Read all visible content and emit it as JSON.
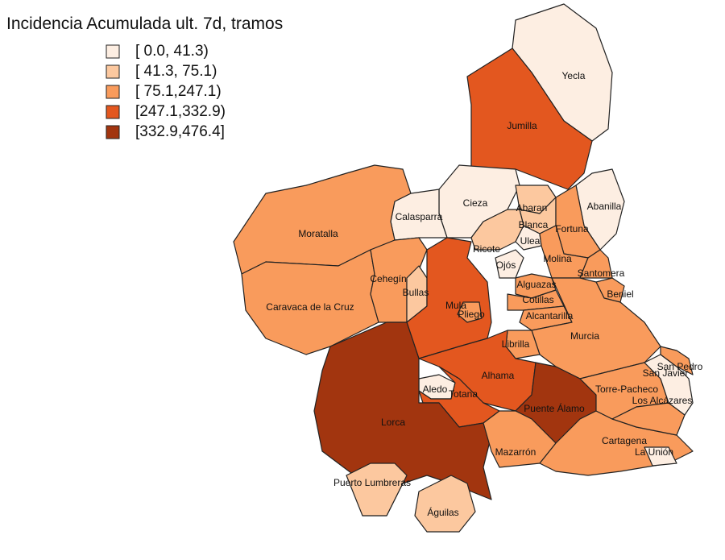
{
  "title": "Incidencia Acumulada ult. 7d, tramos",
  "legend": [
    {
      "label": "[  0.0, 41.3)",
      "color": "#fdeee2"
    },
    {
      "label": "[ 41.3, 75.1)",
      "color": "#fcc89f"
    },
    {
      "label": "[ 75.1,247.1)",
      "color": "#f99b5c"
    },
    {
      "label": "[247.1,332.9)",
      "color": "#e3571f"
    },
    {
      "label": "[332.9,476.4]",
      "color": "#a2350f"
    }
  ],
  "regions": [
    {
      "name": "Yecla",
      "color": "#fdeee2"
    },
    {
      "name": "Jumilla",
      "color": "#e3571f"
    },
    {
      "name": "Abanilla",
      "color": "#fdeee2"
    },
    {
      "name": "Cieza",
      "color": "#fdeee2"
    },
    {
      "name": "Calasparra",
      "color": "#fdeee2"
    },
    {
      "name": "Moratalla",
      "color": "#f99b5c"
    },
    {
      "name": "Caravaca de la Cruz",
      "color": "#f99b5c"
    },
    {
      "name": "Cehegín",
      "color": "#f99b5c"
    },
    {
      "name": "Bullas",
      "color": "#fcc89f"
    },
    {
      "name": "Mula",
      "color": "#e3571f"
    },
    {
      "name": "Pliego",
      "color": "#f99b5c"
    },
    {
      "name": "Abaran",
      "color": "#fcc89f"
    },
    {
      "name": "Blanca",
      "color": "#fcc89f"
    },
    {
      "name": "Ricote",
      "color": "#fcc89f"
    },
    {
      "name": "Fortuna",
      "color": "#f99b5c"
    },
    {
      "name": "Ulea",
      "color": "#fdeee2"
    },
    {
      "name": "Ojós",
      "color": "#fdeee2"
    },
    {
      "name": "Molina",
      "color": "#f99b5c"
    },
    {
      "name": "Santomera",
      "color": "#f99b5c"
    },
    {
      "name": "Beniel",
      "color": "#f99b5c"
    },
    {
      "name": "Alguazas",
      "color": "#f99b5c"
    },
    {
      "name": "Cotillas",
      "color": "#f99b5c"
    },
    {
      "name": "Alcantarilla",
      "color": "#f99b5c"
    },
    {
      "name": "Murcia",
      "color": "#f99b5c"
    },
    {
      "name": "Librilla",
      "color": "#f99b5c"
    },
    {
      "name": "Alhama",
      "color": "#e3571f"
    },
    {
      "name": "Aledo",
      "color": "#fdeee2"
    },
    {
      "name": "Totana",
      "color": "#e3571f"
    },
    {
      "name": "Puente Álamo",
      "color": "#a2350f"
    },
    {
      "name": "Lorca",
      "color": "#a2350f"
    },
    {
      "name": "Puerto Lumbreras",
      "color": "#fcc89f"
    },
    {
      "name": "Águilas",
      "color": "#fcc89f"
    },
    {
      "name": "Mazarrón",
      "color": "#f99b5c"
    },
    {
      "name": "Cartagena",
      "color": "#f99b5c"
    },
    {
      "name": "La Unión",
      "color": "#fdeee2"
    },
    {
      "name": "Torre-Pacheco",
      "color": "#f99b5c"
    },
    {
      "name": "Los Alcázares",
      "color": "#f99b5c"
    },
    {
      "name": "San Javier",
      "color": "#fdeee2"
    },
    {
      "name": "San Pedro",
      "color": "#f99b5c"
    }
  ]
}
